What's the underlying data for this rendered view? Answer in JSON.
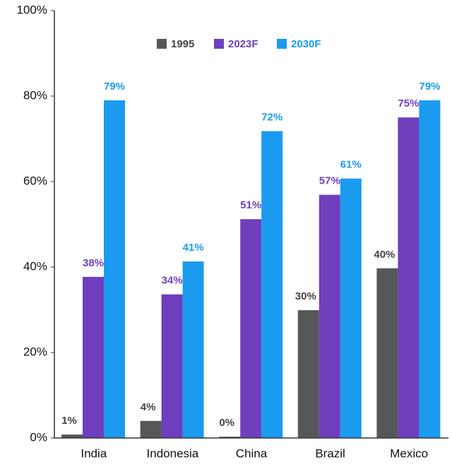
{
  "chart_data": {
    "type": "bar",
    "categories": [
      "India",
      "Indonesia",
      "China",
      "Brazil",
      "Mexico"
    ],
    "series": [
      {
        "name": "1995",
        "color": "#555759",
        "values": [
          0.8,
          4,
          0.3,
          29.9,
          39.7
        ],
        "value_labels": [
          "1%",
          "4%",
          "0%",
          "30%",
          "40%"
        ]
      },
      {
        "name": "2023F",
        "color": "#6f3fbd",
        "values": [
          37.7,
          33.6,
          51.2,
          56.9,
          75
        ],
        "value_labels": [
          "38%",
          "34%",
          "51%",
          "57%",
          "75%"
        ]
      },
      {
        "name": "2030F",
        "color": "#1a9bf0",
        "values": [
          79,
          41.3,
          71.8,
          60.7,
          79
        ],
        "value_labels": [
          "79%",
          "41%",
          "72%",
          "61%",
          "79%"
        ]
      }
    ],
    "ylim": [
      0,
      100
    ],
    "yticks": [
      {
        "value": 0,
        "label": "0%"
      },
      {
        "value": 20,
        "label": "20%"
      },
      {
        "value": 40,
        "label": "40%"
      },
      {
        "value": 60,
        "label": "60%"
      },
      {
        "value": 80,
        "label": "80%"
      },
      {
        "value": 100,
        "label": "100%"
      }
    ],
    "grid": false
  }
}
